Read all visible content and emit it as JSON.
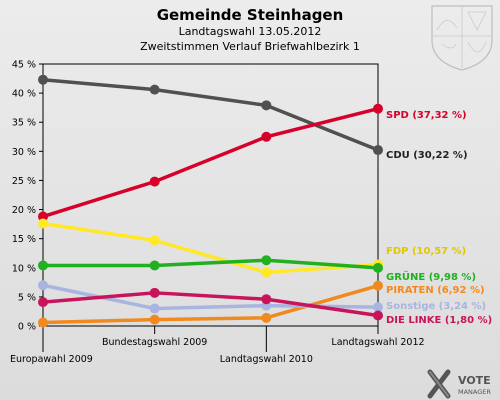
{
  "chart_data": {
    "type": "line",
    "title": "Gemeinde Steinhagen",
    "subtitle_1": "Landtagswahl 13.05.2012",
    "subtitle_2": "Zweitstimmen Verlauf Briefwahlbezirk 1",
    "categories": [
      "Europawahl 2009",
      "Bundestagswahl 2009",
      "Landtagswahl 2010",
      "Landtagswahl 2012"
    ],
    "ylim": [
      0,
      45
    ],
    "yticks": [
      "0 %",
      "5 %",
      "10 %",
      "15 %",
      "20 %",
      "25 %",
      "30 %",
      "35 %",
      "40 %",
      "45 %"
    ],
    "grid": false,
    "series": [
      {
        "name": "CDU",
        "label": "CDU (30,22 %)",
        "color": "#505050",
        "values": [
          42.3,
          40.6,
          37.9,
          30.22
        ]
      },
      {
        "name": "SPD",
        "label": "SPD (37,32 %)",
        "color": "#d7002a",
        "values": [
          18.8,
          24.8,
          32.5,
          37.32
        ]
      },
      {
        "name": "FDP",
        "label": "FDP (10,57 %)",
        "color": "#ffe825",
        "values": [
          17.6,
          14.7,
          9.2,
          10.57
        ]
      },
      {
        "name": "GRÜNE",
        "label": "GRÜNE (9,98 %)",
        "color": "#20b020",
        "values": [
          10.4,
          10.4,
          11.3,
          9.98
        ]
      },
      {
        "name": "PIRATEN",
        "label": "PIRATEN (6,92 %)",
        "color": "#f08a1e",
        "values": [
          0.6,
          1.1,
          1.4,
          6.92
        ]
      },
      {
        "name": "Sonstige",
        "label": "Sonstige (3,24 %)",
        "color": "#a9b4e0",
        "values": [
          7.0,
          3.0,
          3.5,
          3.24
        ]
      },
      {
        "name": "DIE LINKE",
        "label": "DIE LINKE (1,80 %)",
        "color": "#c8145a",
        "values": [
          4.1,
          5.7,
          4.6,
          1.8
        ]
      }
    ]
  },
  "branding": {
    "logo_text_1": "VOTE",
    "logo_text_2": "MANAGER"
  },
  "colors": {
    "background": "#e4e4e4",
    "axis": "#000000"
  }
}
